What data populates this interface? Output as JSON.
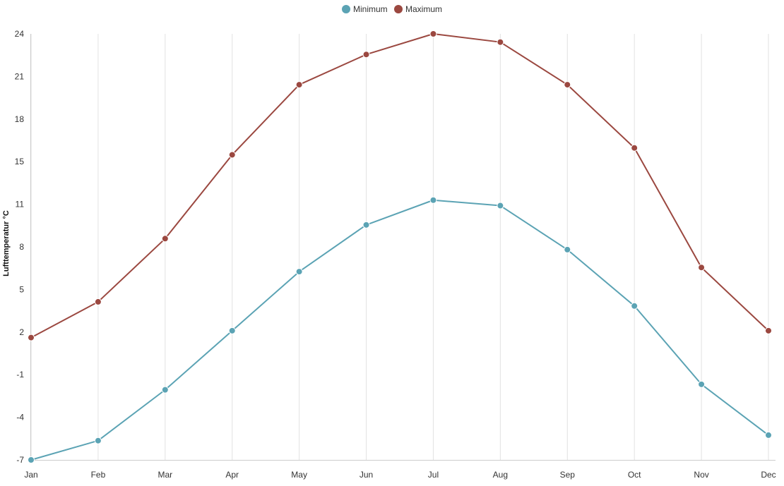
{
  "chart_data": {
    "type": "line",
    "title": "",
    "xlabel": "",
    "ylabel": "Lufttemperatur °C",
    "categories": [
      "Jan",
      "Feb",
      "Mar",
      "Apr",
      "May",
      "Jun",
      "Jul",
      "Aug",
      "Sep",
      "Oct",
      "Nov",
      "Dec"
    ],
    "series": [
      {
        "name": "Minimum",
        "color": "#5ba3b4",
        "values": [
          -7.0,
          -5.6,
          -1.9,
          2.4,
          6.7,
          10.1,
          11.9,
          11.5,
          8.3,
          4.2,
          -1.5,
          -5.2
        ]
      },
      {
        "name": "Maximum",
        "color": "#9b4840",
        "values": [
          1.9,
          4.5,
          9.1,
          15.2,
          20.3,
          22.5,
          24.0,
          23.4,
          20.3,
          15.7,
          7.0,
          2.4
        ]
      }
    ],
    "yticks": [
      "24",
      "21",
      "18",
      "15",
      "11",
      "8",
      "5",
      "2",
      "-1",
      "-4",
      "-7"
    ],
    "ylim": [
      -7,
      24
    ],
    "grid": {
      "vertical": true,
      "horizontal": false
    },
    "legend": {
      "position": "top-center"
    }
  }
}
